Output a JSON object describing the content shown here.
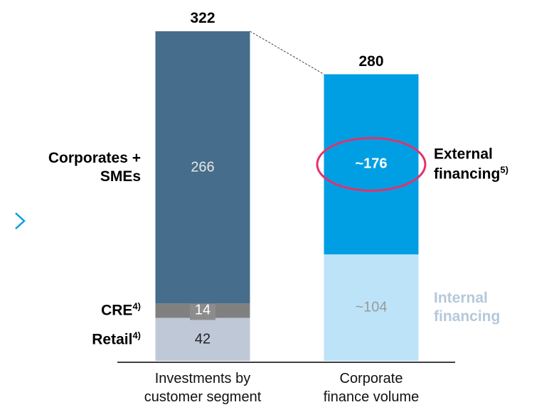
{
  "chart_data": {
    "type": "stacked_bar",
    "categories": [
      "Investments by customer segment",
      "Corporate finance volume"
    ],
    "totals": [
      322,
      280
    ],
    "ylim": [
      0,
      322
    ],
    "series": [
      {
        "name": "Retail",
        "footnote": "4)",
        "color": "#bfc8d6",
        "label_color": "#222222",
        "name_color": "#000000",
        "values": [
          42,
          null
        ]
      },
      {
        "name": "CRE",
        "footnote": "4)",
        "color": "#808080",
        "label_color": "#ffffff",
        "name_color": "#000000",
        "values": [
          14,
          null
        ]
      },
      {
        "name": "Corporates + SMEs",
        "color": "#466d8b",
        "label_color": "#e6e6e6",
        "name_color": "#000000",
        "values": [
          266,
          null
        ]
      },
      {
        "name": "Internal financing",
        "color": "#bde3f8",
        "label_color": "#9a9a9a",
        "name_color": "#b4c9db",
        "values": [
          null,
          104
        ],
        "value_labels": [
          null,
          "~104"
        ]
      },
      {
        "name": "External financing",
        "footnote": "5)",
        "color": "#009fe3",
        "label_color": "#ffffff",
        "name_color": "#000000",
        "values": [
          null,
          176
        ],
        "value_labels": [
          null,
          "~176"
        ]
      }
    ]
  }
}
